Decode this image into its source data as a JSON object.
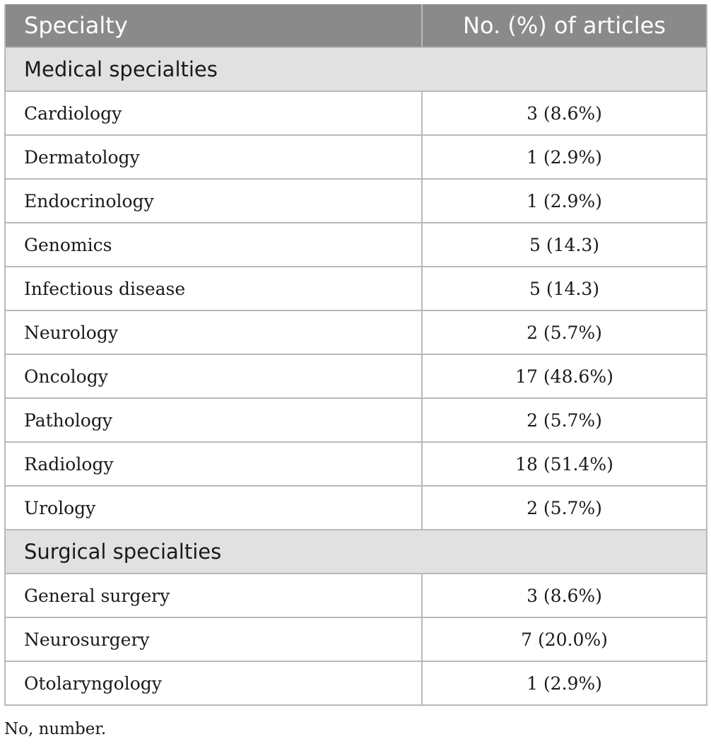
{
  "table": {
    "headers": [
      "Specialty",
      "No. (%) of articles"
    ],
    "sections": [
      {
        "title": "Medical specialties",
        "rows": [
          {
            "specialty": "Cardiology",
            "value": "3 (8.6%)"
          },
          {
            "specialty": "Dermatology",
            "value": "1 (2.9%)"
          },
          {
            "specialty": "Endocrinology",
            "value": "1 (2.9%)"
          },
          {
            "specialty": "Genomics",
            "value": "5 (14.3)"
          },
          {
            "specialty": "Infectious disease",
            "value": "5 (14.3)"
          },
          {
            "specialty": "Neurology",
            "value": "2 (5.7%)"
          },
          {
            "specialty": "Oncology",
            "value": "17 (48.6%)"
          },
          {
            "specialty": "Pathology",
            "value": "2 (5.7%)"
          },
          {
            "specialty": "Radiology",
            "value": "18 (51.4%)"
          },
          {
            "specialty": "Urology",
            "value": "2 (5.7%)"
          }
        ]
      },
      {
        "title": "Surgical specialties",
        "rows": [
          {
            "specialty": "General surgery",
            "value": "3 (8.6%)"
          },
          {
            "specialty": "Neurosurgery",
            "value": "7 (20.0%)"
          },
          {
            "specialty": "Otolaryngology",
            "value": "1 (2.9%)"
          }
        ]
      }
    ]
  },
  "footnote": "No, number.",
  "colors": {
    "header_bg": "#8a8a8a",
    "section_bg": "#e1e1e1",
    "border": "#b9b9b9"
  }
}
